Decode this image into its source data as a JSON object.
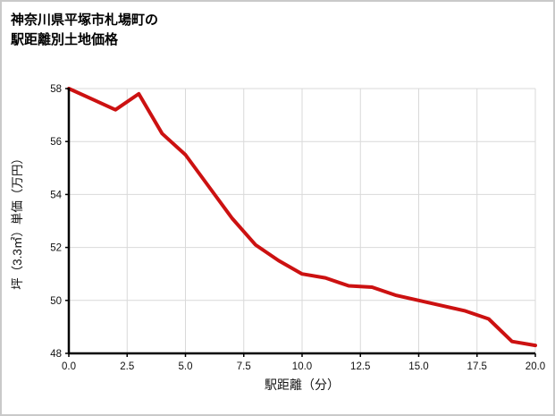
{
  "title_line1": "神奈川県平塚市札場町の",
  "title_line2": "駅距離別土地価格",
  "chart_data": {
    "type": "line",
    "title": "神奈川県平塚市札場町の駅距離別土地価格",
    "xlabel": "駅距離（分）",
    "ylabel": "坪（3.3㎡）単価（万円）",
    "x": [
      0,
      1,
      2,
      3,
      4,
      5,
      6,
      7,
      8,
      9,
      10,
      11,
      12,
      13,
      14,
      15,
      16,
      17,
      18,
      19,
      20
    ],
    "y": [
      58.0,
      57.6,
      57.2,
      57.8,
      56.3,
      55.5,
      54.3,
      53.1,
      52.1,
      51.5,
      51.0,
      50.85,
      50.55,
      50.5,
      50.2,
      50.0,
      49.8,
      49.6,
      49.3,
      48.45,
      48.3
    ],
    "xlim": [
      0,
      20
    ],
    "ylim": [
      48,
      58
    ],
    "xticks": [
      0,
      2.5,
      5,
      7.5,
      10,
      12.5,
      15,
      17.5,
      20
    ],
    "xtick_labels": [
      "0.0",
      "2.5",
      "5.0",
      "7.5",
      "10.0",
      "12.5",
      "15.0",
      "17.5",
      "20.0"
    ],
    "yticks": [
      48,
      50,
      52,
      54,
      56,
      58
    ],
    "ytick_labels": [
      "48",
      "50",
      "52",
      "54",
      "56",
      "58"
    ],
    "grid": true,
    "legend": "none",
    "series_name": "駅距離別土地価格"
  },
  "colors": {
    "line": "#cc1111",
    "grid": "#d9d9d9",
    "axis": "#000000",
    "tick_text": "#111111",
    "border": "#c9c9c9",
    "background": "#ffffff"
  }
}
